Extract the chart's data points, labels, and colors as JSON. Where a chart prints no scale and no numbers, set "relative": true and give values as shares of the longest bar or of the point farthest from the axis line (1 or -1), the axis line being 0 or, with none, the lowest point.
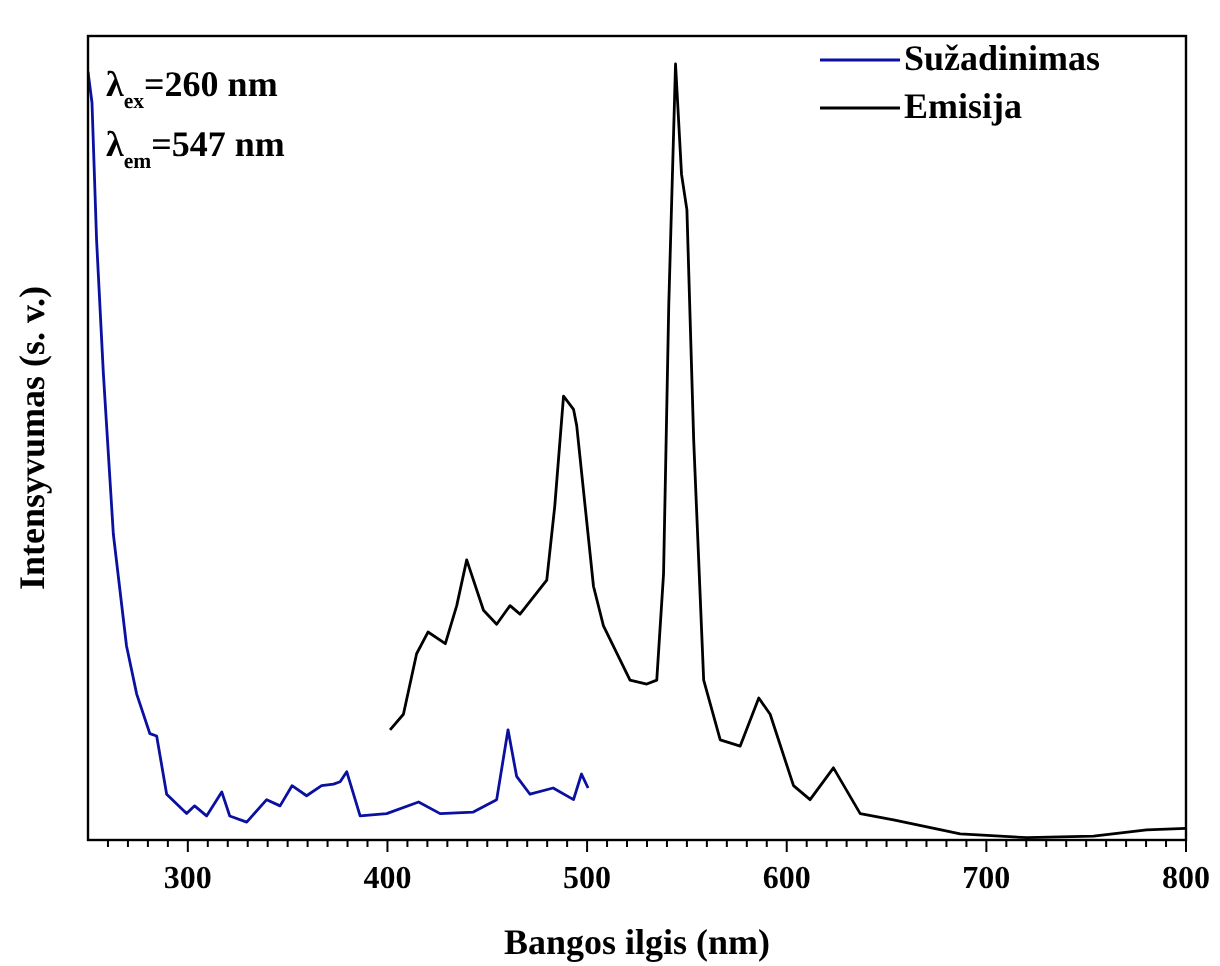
{
  "chart_data": {
    "type": "line",
    "xlabel": "Bangos ilgis (nm)",
    "ylabel": "Intensyvumas (s. v.)",
    "relative": true,
    "legend": "top right",
    "xlim": [
      250,
      800
    ],
    "xticks": [
      {
        "value": 260,
        "label": null
      },
      {
        "value": 270,
        "label": null
      },
      {
        "value": 280,
        "label": null
      },
      {
        "value": 290,
        "label": null
      },
      300,
      {
        "value": 310,
        "label": null
      },
      {
        "value": 320,
        "label": null
      },
      {
        "value": 330,
        "label": null
      },
      {
        "value": 340,
        "label": null
      },
      {
        "value": 350,
        "label": null
      },
      {
        "value": 360,
        "label": null
      },
      {
        "value": 370,
        "label": null
      },
      {
        "value": 380,
        "label": null
      },
      {
        "value": 390,
        "label": null
      },
      400,
      {
        "value": 410,
        "label": null
      },
      {
        "value": 420,
        "label": null
      },
      {
        "value": 430,
        "label": null
      },
      {
        "value": 440,
        "label": null
      },
      {
        "value": 450,
        "label": null
      },
      {
        "value": 460,
        "label": null
      },
      {
        "value": 470,
        "label": null
      },
      {
        "value": 480,
        "label": null
      },
      {
        "value": 490,
        "label": null
      },
      500,
      {
        "value": 510,
        "label": null
      },
      {
        "value": 520,
        "label": null
      },
      {
        "value": 530,
        "label": null
      },
      {
        "value": 540,
        "label": null
      },
      {
        "value": 550,
        "label": null
      },
      {
        "value": 560,
        "label": null
      },
      {
        "value": 570,
        "label": null
      },
      {
        "value": 580,
        "label": null
      },
      {
        "value": 590,
        "label": null
      },
      600,
      {
        "value": 610,
        "label": null
      },
      {
        "value": 620,
        "label": null
      },
      {
        "value": 630,
        "label": null
      },
      {
        "value": 640,
        "label": null
      },
      {
        "value": 650,
        "label": null
      },
      {
        "value": 660,
        "label": null
      },
      {
        "value": 670,
        "label": null
      },
      {
        "value": 680,
        "label": null
      },
      {
        "value": 690,
        "label": null
      },
      700,
      {
        "value": 710,
        "label": null
      },
      {
        "value": 720,
        "label": null
      },
      {
        "value": 730,
        "label": null
      },
      {
        "value": 740,
        "label": null
      },
      {
        "value": 750,
        "label": null
      },
      {
        "value": 760,
        "label": null
      },
      {
        "value": 770,
        "label": null
      },
      {
        "value": 780,
        "label": null
      },
      {
        "value": 790,
        "label": null
      },
      800
    ],
    "annotations": [
      "λ$_{ex}$=260 nm",
      "λ$_{em}$=547 nm"
    ],
    "series": [
      {
        "name": "Sužadinimas",
        "color": "#0a10a0",
        "x": [
          250,
          252,
          254.3,
          257.7,
          262.7,
          269.3,
          274.4,
          281,
          284.4,
          289.4,
          299.4,
          303.4,
          309.4,
          317,
          321,
          329.5,
          339.5,
          346.2,
          352.2,
          359.5,
          367,
          373,
          376.3,
          379.6,
          386.3,
          399.6,
          415.6,
          426.4,
          443,
          454.7,
          460.4,
          464.7,
          471.4,
          483,
          493.2,
          497.2,
          500.5
        ],
        "values": [
          0.99,
          0.95,
          0.773,
          0.601,
          0.394,
          0.25,
          0.188,
          0.137,
          0.134,
          0.059,
          0.034,
          0.044,
          0.031,
          0.062,
          0.031,
          0.023,
          0.052,
          0.044,
          0.07,
          0.057,
          0.07,
          0.072,
          0.075,
          0.088,
          0.031,
          0.034,
          0.049,
          0.034,
          0.036,
          0.052,
          0.142,
          0.082,
          0.059,
          0.067,
          0.052,
          0.085,
          0.067
        ]
      },
      {
        "name": "Emisija",
        "color": "#000000",
        "x": [
          401.3,
          408,
          414.6,
          420.3,
          429,
          434.7,
          439.7,
          448.1,
          454.7,
          461.4,
          466.4,
          479.8,
          483.8,
          488.2,
          493.2,
          494.8,
          503.2,
          508.2,
          521.5,
          529.9,
          534.9,
          538.3,
          540.9,
          544.3,
          547.3,
          550,
          553.4,
          558.4,
          566.7,
          576.7,
          586,
          591.7,
          603.4,
          611.7,
          623.4,
          636.8,
          653.5,
          686.9,
          720.3,
          753.7,
          780.3,
          800
        ],
        "values": [
          0.142,
          0.162,
          0.24,
          0.268,
          0.253,
          0.302,
          0.361,
          0.296,
          0.278,
          0.302,
          0.291,
          0.335,
          0.43,
          0.572,
          0.555,
          0.534,
          0.327,
          0.276,
          0.206,
          0.201,
          0.206,
          0.343,
          0.688,
          1,
          0.858,
          0.812,
          0.515,
          0.206,
          0.129,
          0.121,
          0.183,
          0.162,
          0.07,
          0.052,
          0.093,
          0.034,
          0.026,
          0.008,
          0.003,
          0.005,
          0.013,
          0.015
        ]
      }
    ]
  }
}
